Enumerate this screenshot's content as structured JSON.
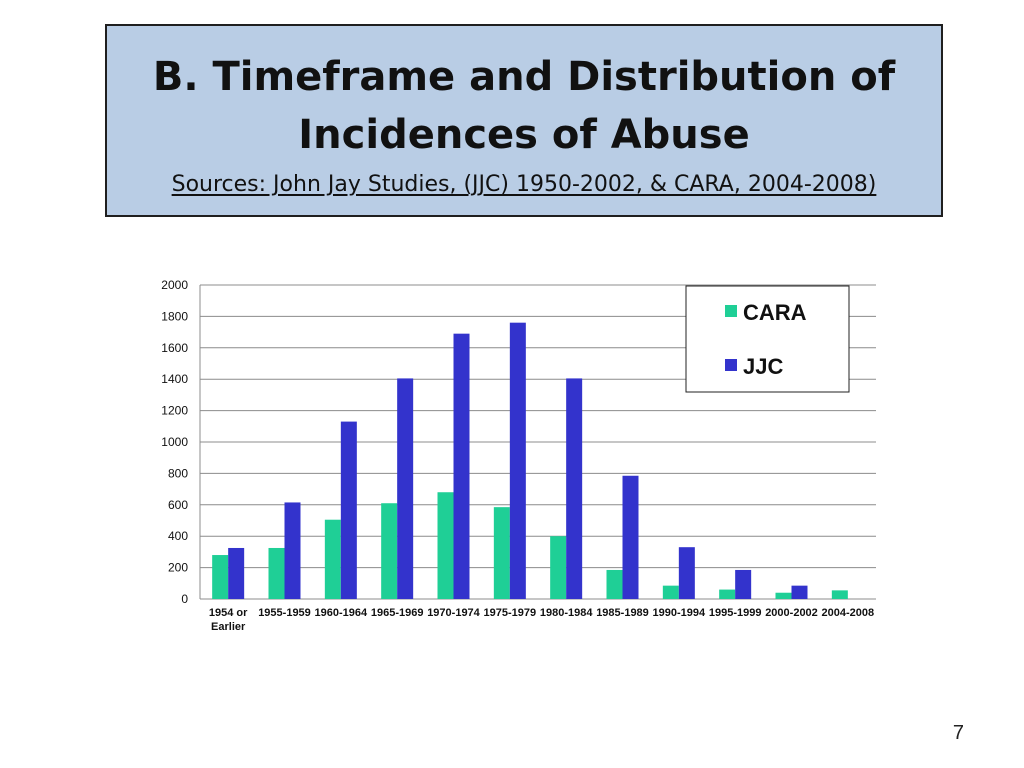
{
  "slide": {
    "title_line1": "B. Timeframe and Distribution of",
    "title_line2": "Incidences of Abuse",
    "subtitle": "Sources: John Jay Studies, (JJC) 1950-2002, & CARA, 2004-2008)",
    "page_number": "7"
  },
  "colors": {
    "CARA": "#1fcf96",
    "JJC": "#3333cc",
    "title_background": "#b9cde5"
  },
  "chart_data": {
    "type": "bar",
    "categories": [
      "1954 or Earlier",
      "1955-1959",
      "1960-1964",
      "1965-1969",
      "1970-1974",
      "1975-1979",
      "1980-1984",
      "1985-1989",
      "1990-1994",
      "1995-1999",
      "2000-2002",
      "2004-2008"
    ],
    "category_lines": [
      [
        "1954 or",
        "Earlier"
      ],
      [
        "1955-1959"
      ],
      [
        "1960-1964"
      ],
      [
        "1965-1969"
      ],
      [
        "1970-1974"
      ],
      [
        "1975-1979"
      ],
      [
        "1980-1984"
      ],
      [
        "1985-1989"
      ],
      [
        "1990-1994"
      ],
      [
        "1995-1999"
      ],
      [
        "2000-2002"
      ],
      [
        "2004-2008"
      ]
    ],
    "series": [
      {
        "name": "CARA",
        "values": [
          280,
          325,
          505,
          610,
          680,
          585,
          400,
          185,
          85,
          60,
          40,
          55
        ]
      },
      {
        "name": "JJC",
        "values": [
          325,
          615,
          1130,
          1405,
          1690,
          1760,
          1405,
          785,
          330,
          185,
          85,
          null
        ]
      }
    ],
    "ylim": [
      0,
      2000
    ],
    "yticks": [
      0,
      200,
      400,
      600,
      800,
      1000,
      1200,
      1400,
      1600,
      1800,
      2000
    ],
    "grid": true,
    "legend_position": "top-right"
  }
}
